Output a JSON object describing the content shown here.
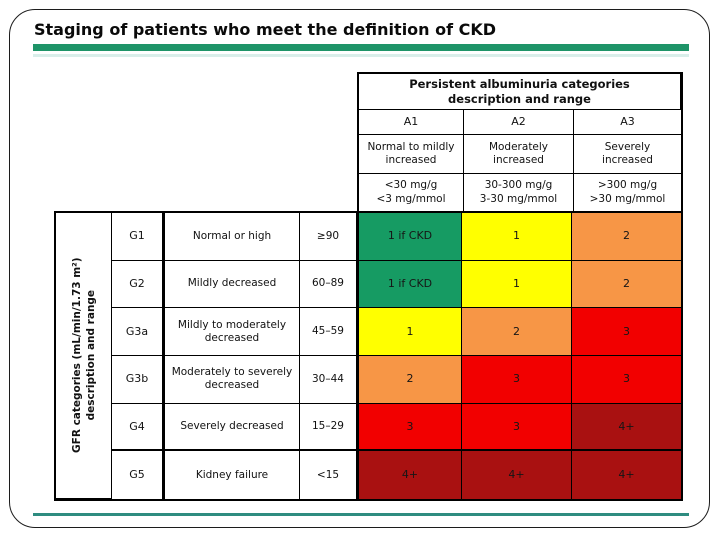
{
  "slide": {
    "title": "Staging of patients who meet the definition of CKD"
  },
  "colors": {
    "green": "#169B63",
    "yellow": "#FFFF00",
    "orange": "#F79646",
    "red": "#F20000",
    "dark_red": "#A91111",
    "bar_green": "#1E9468",
    "line_teal": "#2E8C80"
  },
  "albuminuria": {
    "header": "Persistent albuminuria categories description and range",
    "columns": [
      {
        "code": "A1",
        "description": "Normal to mildly increased",
        "range1": "<30 mg/g",
        "range2": "<3 mg/mmol"
      },
      {
        "code": "A2",
        "description": "Moderately increased",
        "range1": "30-300 mg/g",
        "range2": "3-30 mg/mmol"
      },
      {
        "code": "A3",
        "description": "Severely increased",
        "range1": ">300 mg/g",
        "range2": ">30 mg/mmol"
      }
    ]
  },
  "gfr": {
    "axis_line1": "GFR categories (mL/min/1.73 m²)",
    "axis_line2": "description and range",
    "rows": [
      {
        "code": "G1",
        "description": "Normal or high",
        "range": "≥90",
        "cells": [
          {
            "label": "1 if CKD",
            "color": "green"
          },
          {
            "label": "1",
            "color": "yellow"
          },
          {
            "label": "2",
            "color": "orange"
          }
        ]
      },
      {
        "code": "G2",
        "description": "Mildly decreased",
        "range": "60–89",
        "cells": [
          {
            "label": "1 if CKD",
            "color": "green"
          },
          {
            "label": "1",
            "color": "yellow"
          },
          {
            "label": "2",
            "color": "orange"
          }
        ]
      },
      {
        "code": "G3a",
        "description": "Mildly to moderately decreased",
        "range": "45–59",
        "cells": [
          {
            "label": "1",
            "color": "yellow"
          },
          {
            "label": "2",
            "color": "orange"
          },
          {
            "label": "3",
            "color": "red"
          }
        ]
      },
      {
        "code": "G3b",
        "description": "Moderately to severely decreased",
        "range": "30–44",
        "cells": [
          {
            "label": "2",
            "color": "orange"
          },
          {
            "label": "3",
            "color": "red"
          },
          {
            "label": "3",
            "color": "red"
          }
        ]
      },
      {
        "code": "G4",
        "description": "Severely decreased",
        "range": "15–29",
        "cells": [
          {
            "label": "3",
            "color": "red"
          },
          {
            "label": "3",
            "color": "red"
          },
          {
            "label": "4+",
            "color": "dark_red"
          }
        ]
      },
      {
        "code": "G5",
        "description": "Kidney failure",
        "range": "<15",
        "cells": [
          {
            "label": "4+",
            "color": "dark_red"
          },
          {
            "label": "4+",
            "color": "dark_red"
          },
          {
            "label": "4+",
            "color": "dark_red"
          }
        ]
      }
    ]
  }
}
